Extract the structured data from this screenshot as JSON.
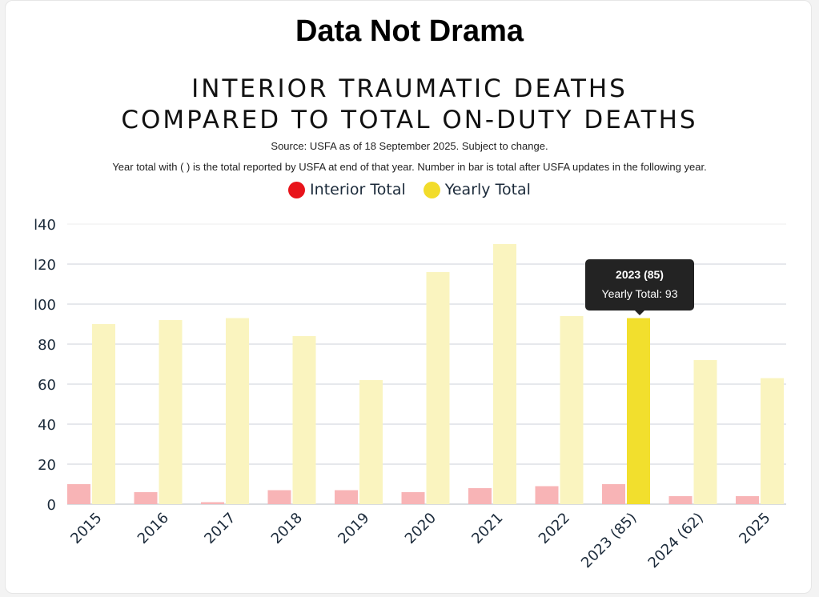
{
  "brand": "Data Not Drama",
  "chart_data": {
    "type": "bar",
    "title": [
      "INTERIOR TRAUMATIC DEATHS",
      "COMPARED TO TOTAL ON-DUTY DEATHS"
    ],
    "subtitle": [
      "Source: USFA as of 18 September 2025. Subject to change.",
      "Year total with ( ) is the total reported by USFA at end of that year. Number in bar is total after USFA updates in the following year."
    ],
    "xlabel": "",
    "ylabel": "",
    "ylim": [
      0,
      140
    ],
    "yticks": [
      0,
      20,
      40,
      60,
      80,
      100,
      120,
      140
    ],
    "ytick_labels": [
      "0",
      "20",
      "40",
      "60",
      "80",
      "l00",
      "l20",
      "l40"
    ],
    "grid": true,
    "legend_position": "top-center",
    "categories": [
      "2015",
      "2016",
      "2017",
      "2018",
      "2019",
      "2020",
      "2021",
      "2022",
      "2023 (85)",
      "2024 (62)",
      "2025"
    ],
    "series": [
      {
        "name": "Interior Total",
        "color": "#f8b4b6",
        "legend_color": "#e8141b",
        "values": [
          10,
          6,
          1,
          7,
          7,
          6,
          8,
          9,
          10,
          4,
          4
        ]
      },
      {
        "name": "Yearly Total",
        "color": "#faf4bf",
        "legend_color": "#f2dc2a",
        "highlight_color": "#f2df2d",
        "values": [
          90,
          92,
          93,
          84,
          62,
          116,
          130,
          94,
          93,
          72,
          63
        ]
      }
    ],
    "highlight": {
      "category_index": 8,
      "series_index": 1
    },
    "tooltip": {
      "title": "2023 (85)",
      "label": "Yearly Total",
      "value": "93"
    }
  }
}
